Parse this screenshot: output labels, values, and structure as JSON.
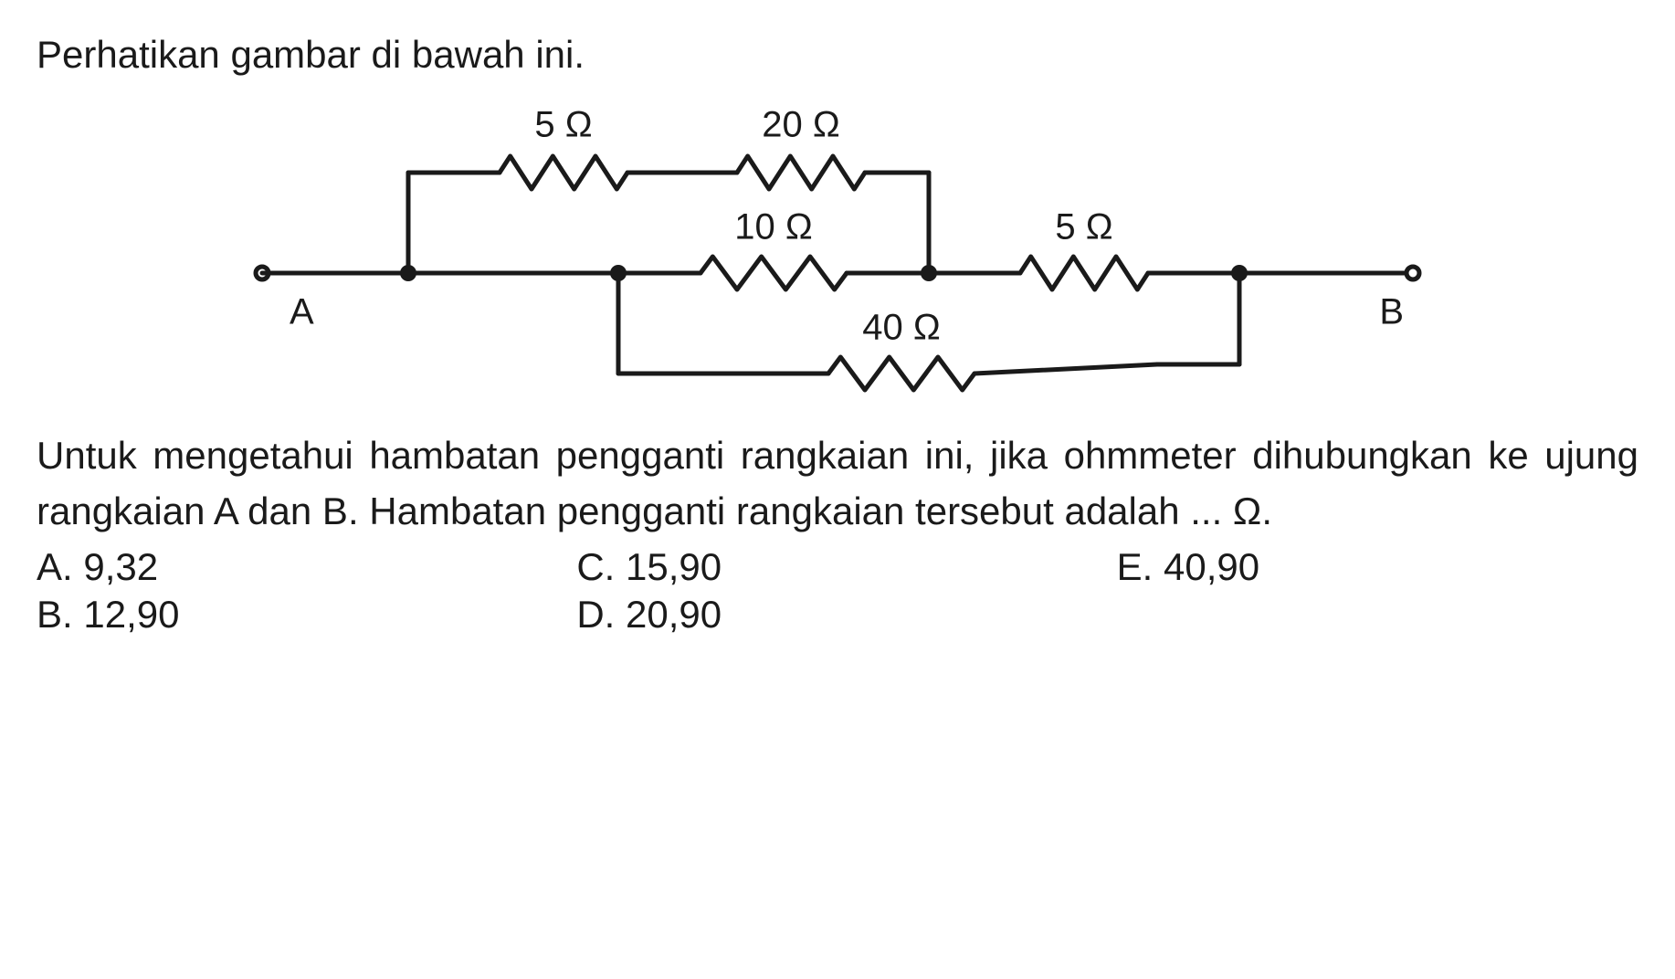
{
  "intro": "Perhatikan gambar di bawah ini.",
  "circuit": {
    "stroke": "#1a1a1a",
    "stroke_width": 5,
    "terminal_radius": 7,
    "node_radius": 9,
    "labels": {
      "A": "A",
      "B": "B",
      "r1": "5 Ω",
      "r2": "20 Ω",
      "r3": "10 Ω",
      "r4": "5 Ω",
      "r5": "40 Ω"
    },
    "label_fontsize": 40
  },
  "body1": "Untuk mengetahui hambatan pengganti rangkaian ini, jika ohmmeter dihubungkan ke ujung rangkaian A dan B. Hambatan pengganti rangkaian tersebut adalah ... Ω.",
  "answers": {
    "A": "A.  9,32",
    "B": "B.  12,90",
    "C": "C.  15,90",
    "D": "D.  20,90",
    "E": "E.  40,90"
  }
}
